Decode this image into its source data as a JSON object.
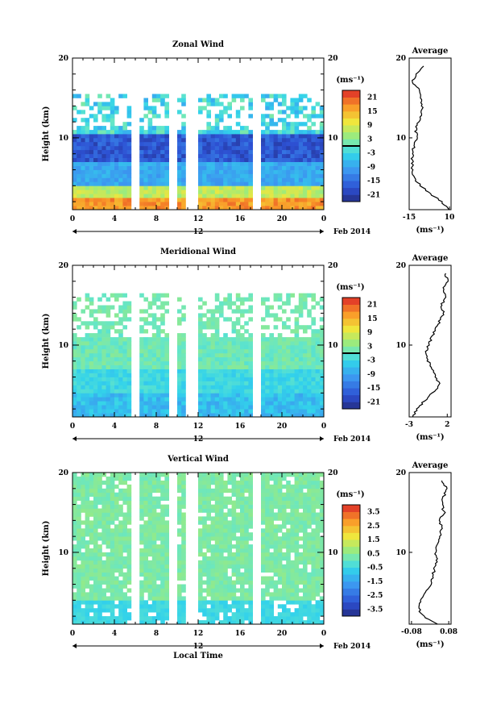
{
  "chart_data": [
    {
      "type": "heatmap",
      "title": "Zonal Wind",
      "ylabel": "Height (km)",
      "xlabel": "",
      "x_ticks": [
        "0",
        "4",
        "8",
        "12",
        "16",
        "20",
        "0"
      ],
      "y_ticks": [
        "10",
        "20"
      ],
      "xlim": [
        0,
        24
      ],
      "ylim": [
        1,
        20
      ],
      "date_day": "12",
      "date_label": "Feb 2014",
      "colorbar": {
        "unit_label": "(ms⁻¹)",
        "ticks": [
          "21",
          "15",
          "9",
          "3",
          "-3",
          "-9",
          "-15",
          "-21"
        ],
        "range": [
          -24,
          24
        ],
        "zero_line": 0
      },
      "profile": {
        "title": "Average",
        "xlabel": "(ms⁻¹)",
        "x_ticks": [
          "-15",
          "10"
        ],
        "xlim": [
          -15,
          11
        ],
        "y_ticks": [
          "10",
          "20"
        ],
        "heights": [
          1,
          2,
          3,
          4,
          5,
          6,
          7,
          8,
          9,
          10,
          11,
          12,
          13,
          14,
          15,
          16,
          17,
          18,
          19
        ],
        "values": [
          10,
          5,
          -2,
          -8,
          -12,
          -13,
          -13,
          -13,
          -12,
          -10,
          -11,
          -9,
          -7,
          -7,
          -8,
          -8,
          -13,
          -10,
          -6
        ]
      }
    },
    {
      "type": "heatmap",
      "title": "Meridional Wind",
      "ylabel": "Height (km)",
      "xlabel": "",
      "x_ticks": [
        "0",
        "4",
        "8",
        "12",
        "16",
        "20",
        "0"
      ],
      "y_ticks": [
        "10",
        "20"
      ],
      "xlim": [
        0,
        24
      ],
      "ylim": [
        1,
        20
      ],
      "date_day": "12",
      "date_label": "Feb 2014",
      "colorbar": {
        "unit_label": "(ms⁻¹)",
        "ticks": [
          "21",
          "15",
          "9",
          "3",
          "-3",
          "-9",
          "-15",
          "-21"
        ],
        "range": [
          -24,
          24
        ],
        "zero_line": 0
      },
      "profile": {
        "title": "Average",
        "xlabel": "(ms⁻¹)",
        "x_ticks": [
          "-3",
          "2"
        ],
        "xlim": [
          -3,
          2.5
        ],
        "y_ticks": [
          "10",
          "20"
        ],
        "heights": [
          1,
          2,
          3,
          4,
          5,
          6,
          7,
          8,
          9,
          10,
          11,
          12,
          13,
          14,
          15,
          16,
          17,
          18,
          19
        ],
        "values": [
          -2.5,
          -2,
          -1,
          0,
          1,
          0.5,
          0,
          -0.5,
          -0.8,
          -0.5,
          0,
          0.5,
          1,
          1.5,
          1.2,
          1.8,
          1.5,
          2,
          1.8
        ]
      }
    },
    {
      "type": "heatmap",
      "title": "Vertical Wind",
      "ylabel": "Height (km)",
      "xlabel": "Local Time",
      "x_ticks": [
        "0",
        "4",
        "8",
        "12",
        "16",
        "20",
        "0"
      ],
      "y_ticks": [
        "10",
        "20"
      ],
      "xlim": [
        0,
        24
      ],
      "ylim": [
        1,
        20
      ],
      "date_day": "12",
      "date_label": "Feb 2014",
      "colorbar": {
        "unit_label": "(ms⁻¹)",
        "ticks": [
          "3.5",
          "2.5",
          "1.5",
          "0.5",
          "-0.5",
          "-1.5",
          "-2.5",
          "-3.5"
        ],
        "range": [
          -4,
          4
        ],
        "zero_line": null
      },
      "profile": {
        "title": "Average",
        "xlabel": "(ms⁻¹)",
        "x_ticks": [
          "-0.08",
          "0.08"
        ],
        "xlim": [
          -0.09,
          0.09
        ],
        "y_ticks": [
          "10",
          "20"
        ],
        "heights": [
          1,
          2,
          3,
          4,
          5,
          6,
          7,
          8,
          9,
          10,
          11,
          12,
          13,
          14,
          15,
          16,
          17,
          18,
          19
        ],
        "values": [
          0.03,
          -0.03,
          -0.05,
          -0.04,
          -0.02,
          0.0,
          0.01,
          0.02,
          0.03,
          0.02,
          0.03,
          0.04,
          0.05,
          0.04,
          0.06,
          0.05,
          0.06,
          0.07,
          0.05
        ]
      }
    }
  ]
}
